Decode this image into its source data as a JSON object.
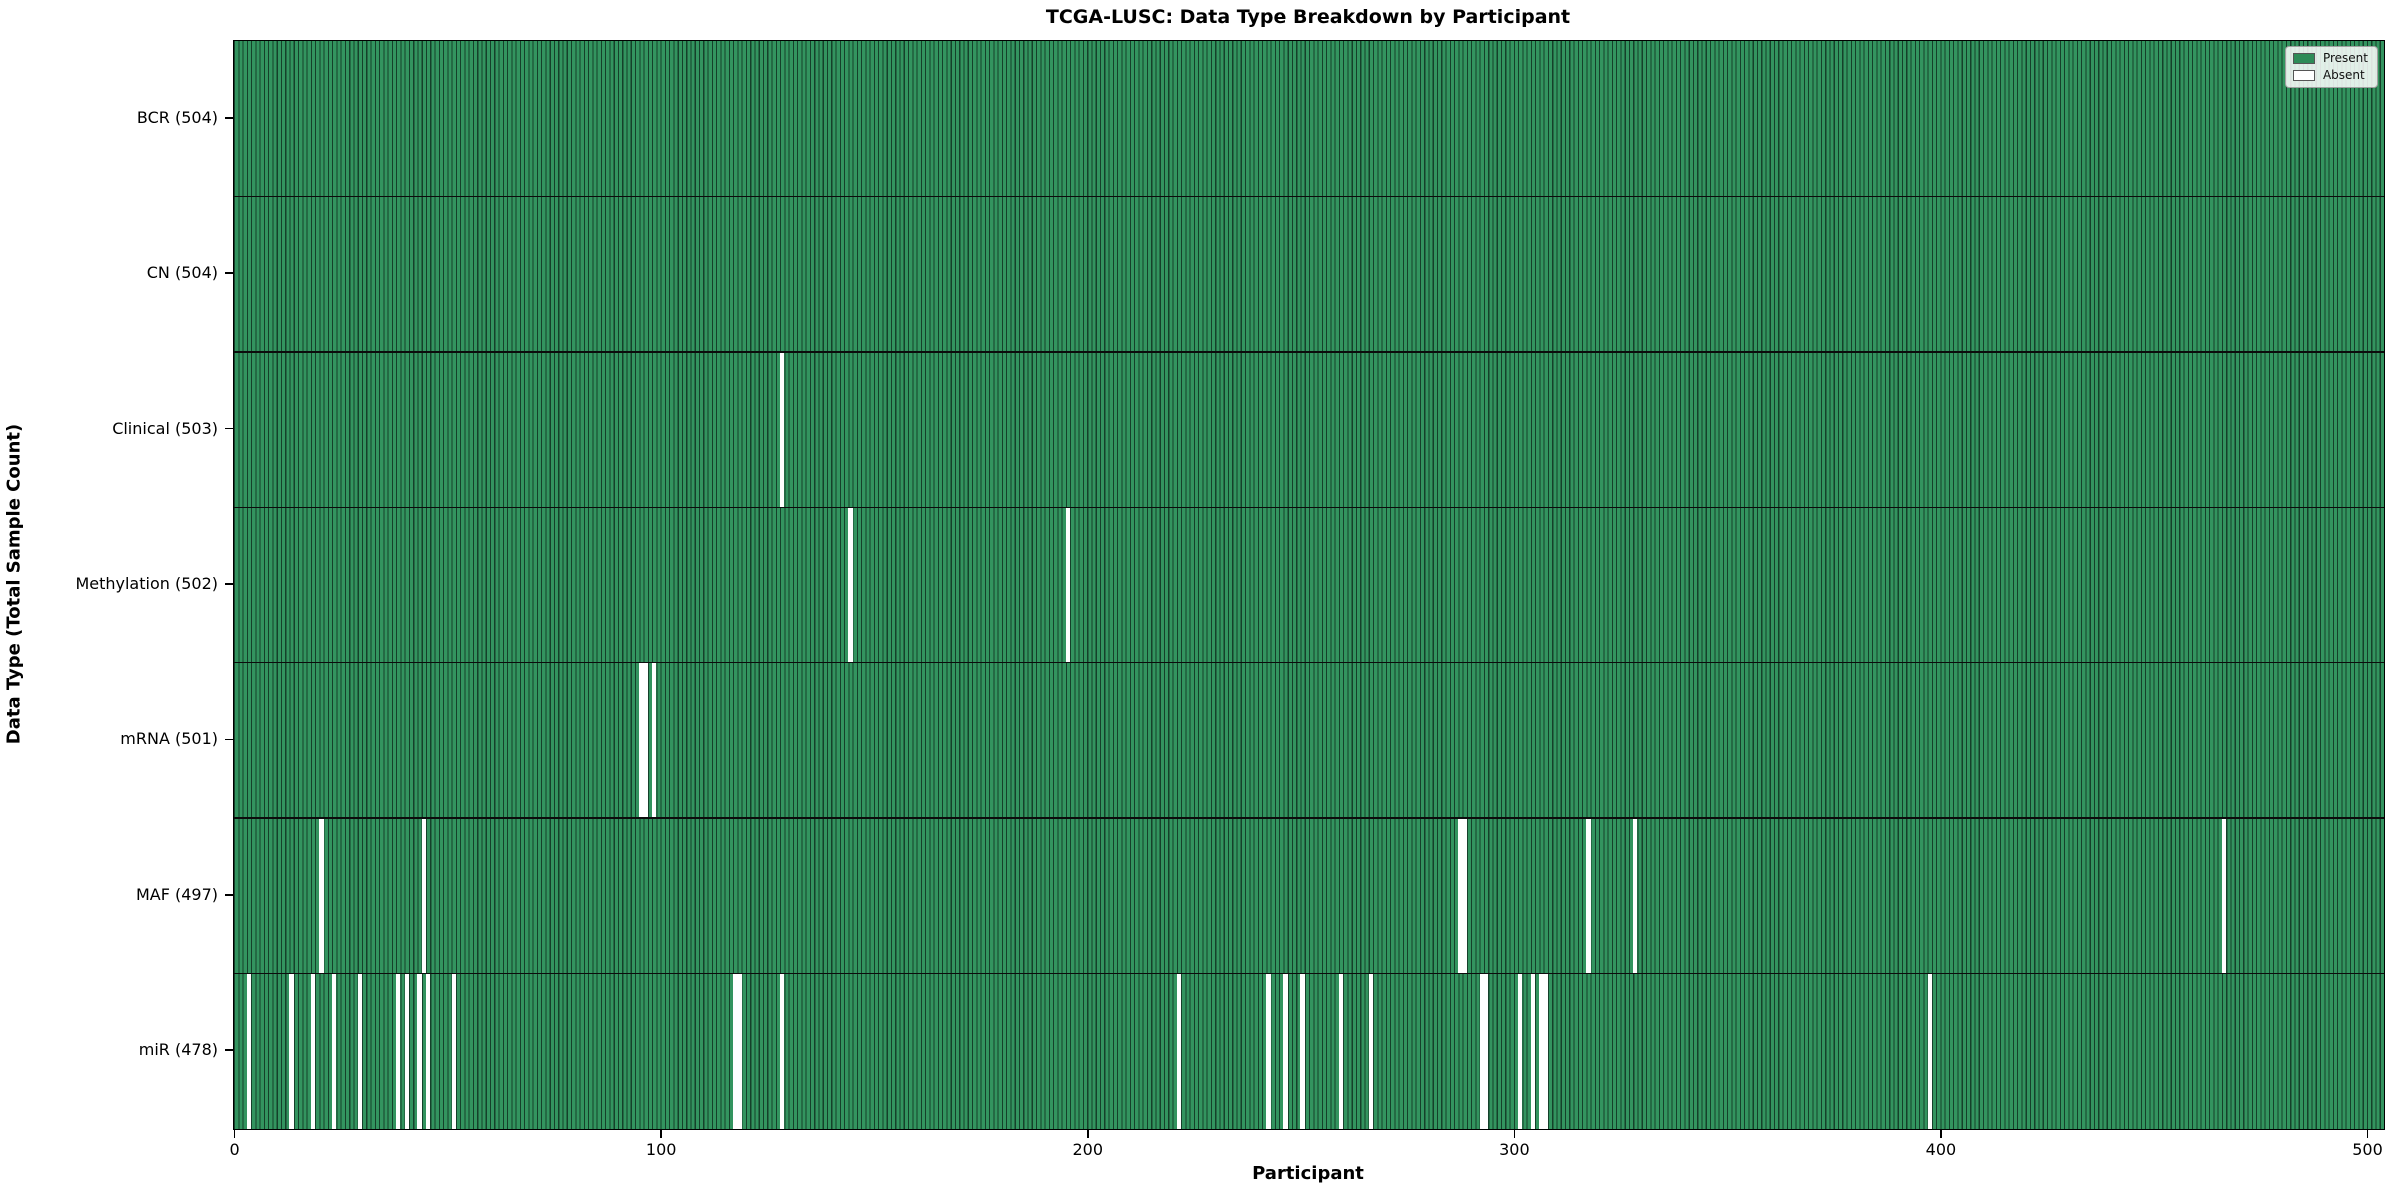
{
  "chart_data": {
    "type": "heatmap",
    "title": "TCGA-LUSC: Data Type Breakdown by Participant",
    "xlabel": "Participant",
    "ylabel": "Data Type (Total Sample Count)",
    "x_range": [
      0,
      504
    ],
    "n_participants": 504,
    "x_ticks": [
      0,
      100,
      200,
      300,
      400,
      500
    ],
    "grid": false,
    "legend_position": "upper right",
    "legend": [
      {
        "label": "Present",
        "color": "#2e8b57"
      },
      {
        "label": "Absent",
        "color": "#ffffff"
      }
    ],
    "colors": {
      "present_fill": "#33945f",
      "present_edge": "#15402a",
      "absent": "#ffffff",
      "row_border": "#0c0c0c"
    },
    "rows": [
      {
        "label": "BCR (504)",
        "data_type": "BCR",
        "present_count": 504,
        "absent_participants": []
      },
      {
        "label": "CN (504)",
        "data_type": "CN",
        "present_count": 504,
        "absent_participants": []
      },
      {
        "label": "Clinical (503)",
        "data_type": "Clinical",
        "present_count": 503,
        "absent_participants": [
          128
        ]
      },
      {
        "label": "Methylation (502)",
        "data_type": "Methylation",
        "present_count": 502,
        "absent_participants": [
          144,
          195
        ]
      },
      {
        "label": "mRNA (501)",
        "data_type": "mRNA",
        "present_count": 501,
        "absent_participants": [
          95,
          96,
          98
        ]
      },
      {
        "label": "MAF (497)",
        "data_type": "MAF",
        "present_count": 497,
        "absent_participants": [
          20,
          44,
          287,
          288,
          317,
          328,
          466
        ]
      },
      {
        "label": "miR (478)",
        "data_type": "miR",
        "present_count": 478,
        "absent_participants": [
          3,
          13,
          18,
          23,
          29,
          38,
          40,
          43,
          45,
          51,
          117,
          118,
          128,
          221,
          242,
          246,
          250,
          259,
          266,
          292,
          293,
          301,
          304,
          306,
          307,
          397
        ]
      }
    ]
  }
}
